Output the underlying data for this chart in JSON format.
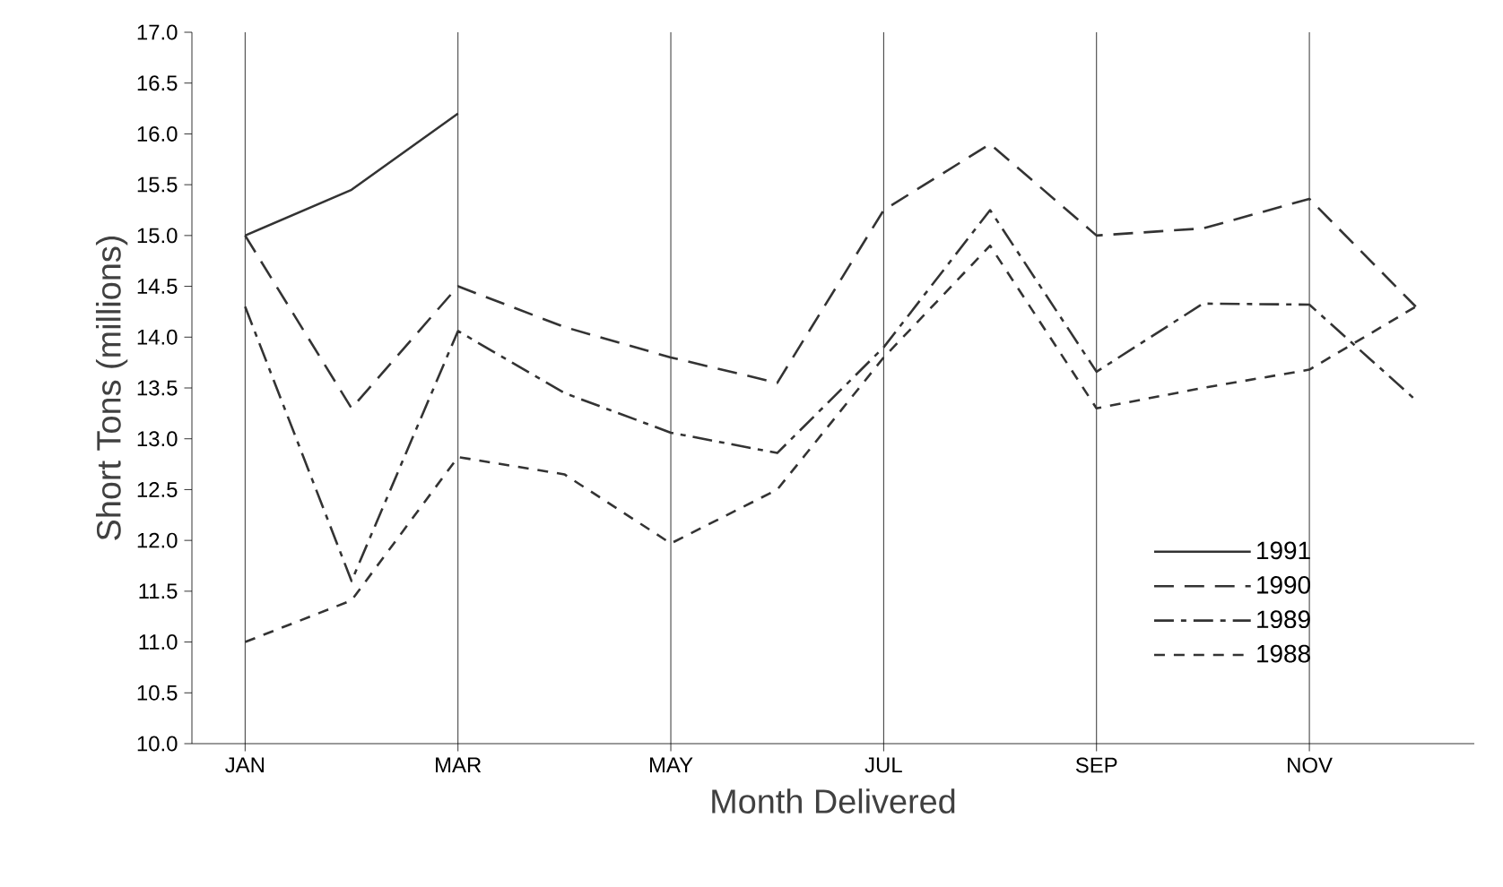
{
  "chart_data": {
    "type": "line",
    "xlabel": "Month Delivered",
    "ylabel": "Short Tons (millions)",
    "categories": [
      "JAN",
      null,
      "MAR",
      null,
      "MAY",
      null,
      "JUL",
      null,
      "SEP",
      null,
      "NOV",
      null
    ],
    "series": [
      {
        "name": "1991",
        "color": "#333333",
        "line_style": "solid",
        "values": [
          15.0,
          15.45,
          16.2,
          null,
          null,
          null,
          null,
          null,
          null,
          null,
          null,
          null
        ]
      },
      {
        "name": "1990",
        "color": "#333333",
        "line_style": "longdashed",
        "values": [
          15.0,
          13.3,
          14.5,
          14.1,
          13.8,
          13.55,
          15.25,
          15.9,
          15.0,
          15.07,
          15.36,
          14.3
        ]
      },
      {
        "name": "1989",
        "color": "#333333",
        "line_style": "dashdot",
        "values": [
          14.3,
          11.6,
          14.06,
          13.45,
          13.06,
          12.86,
          13.9,
          15.25,
          13.66,
          14.33,
          14.32,
          13.38
        ]
      },
      {
        "name": "1988",
        "color": "#333333",
        "line_style": "dashed",
        "values": [
          11.0,
          11.41,
          12.82,
          12.65,
          11.97,
          12.5,
          13.8,
          14.9,
          13.3,
          13.5,
          13.68,
          14.3
        ]
      }
    ],
    "ylim": [
      10.0,
      17.0
    ],
    "yticks": [
      {
        "value": 10.0,
        "label": "10.0"
      },
      {
        "value": 10.5,
        "label": "10.5"
      },
      {
        "value": 11.0,
        "label": "11.0"
      },
      {
        "value": 11.5,
        "label": "11.5"
      },
      {
        "value": 12.0,
        "label": "12.0"
      },
      {
        "value": 12.5,
        "label": "12.5"
      },
      {
        "value": 13.0,
        "label": "13.0"
      },
      {
        "value": 13.5,
        "label": "13.5"
      },
      {
        "value": 14.0,
        "label": "14.0"
      },
      {
        "value": 14.5,
        "label": "14.5"
      },
      {
        "value": 15.0,
        "label": "15.0"
      },
      {
        "value": 15.5,
        "label": "15.5"
      },
      {
        "value": 16.0,
        "label": "16.0"
      },
      {
        "value": 16.5,
        "label": "16.5"
      },
      {
        "value": 17.0,
        "label": "17.0"
      }
    ],
    "grid": "x",
    "legend": "bottom right",
    "marker": "none"
  }
}
